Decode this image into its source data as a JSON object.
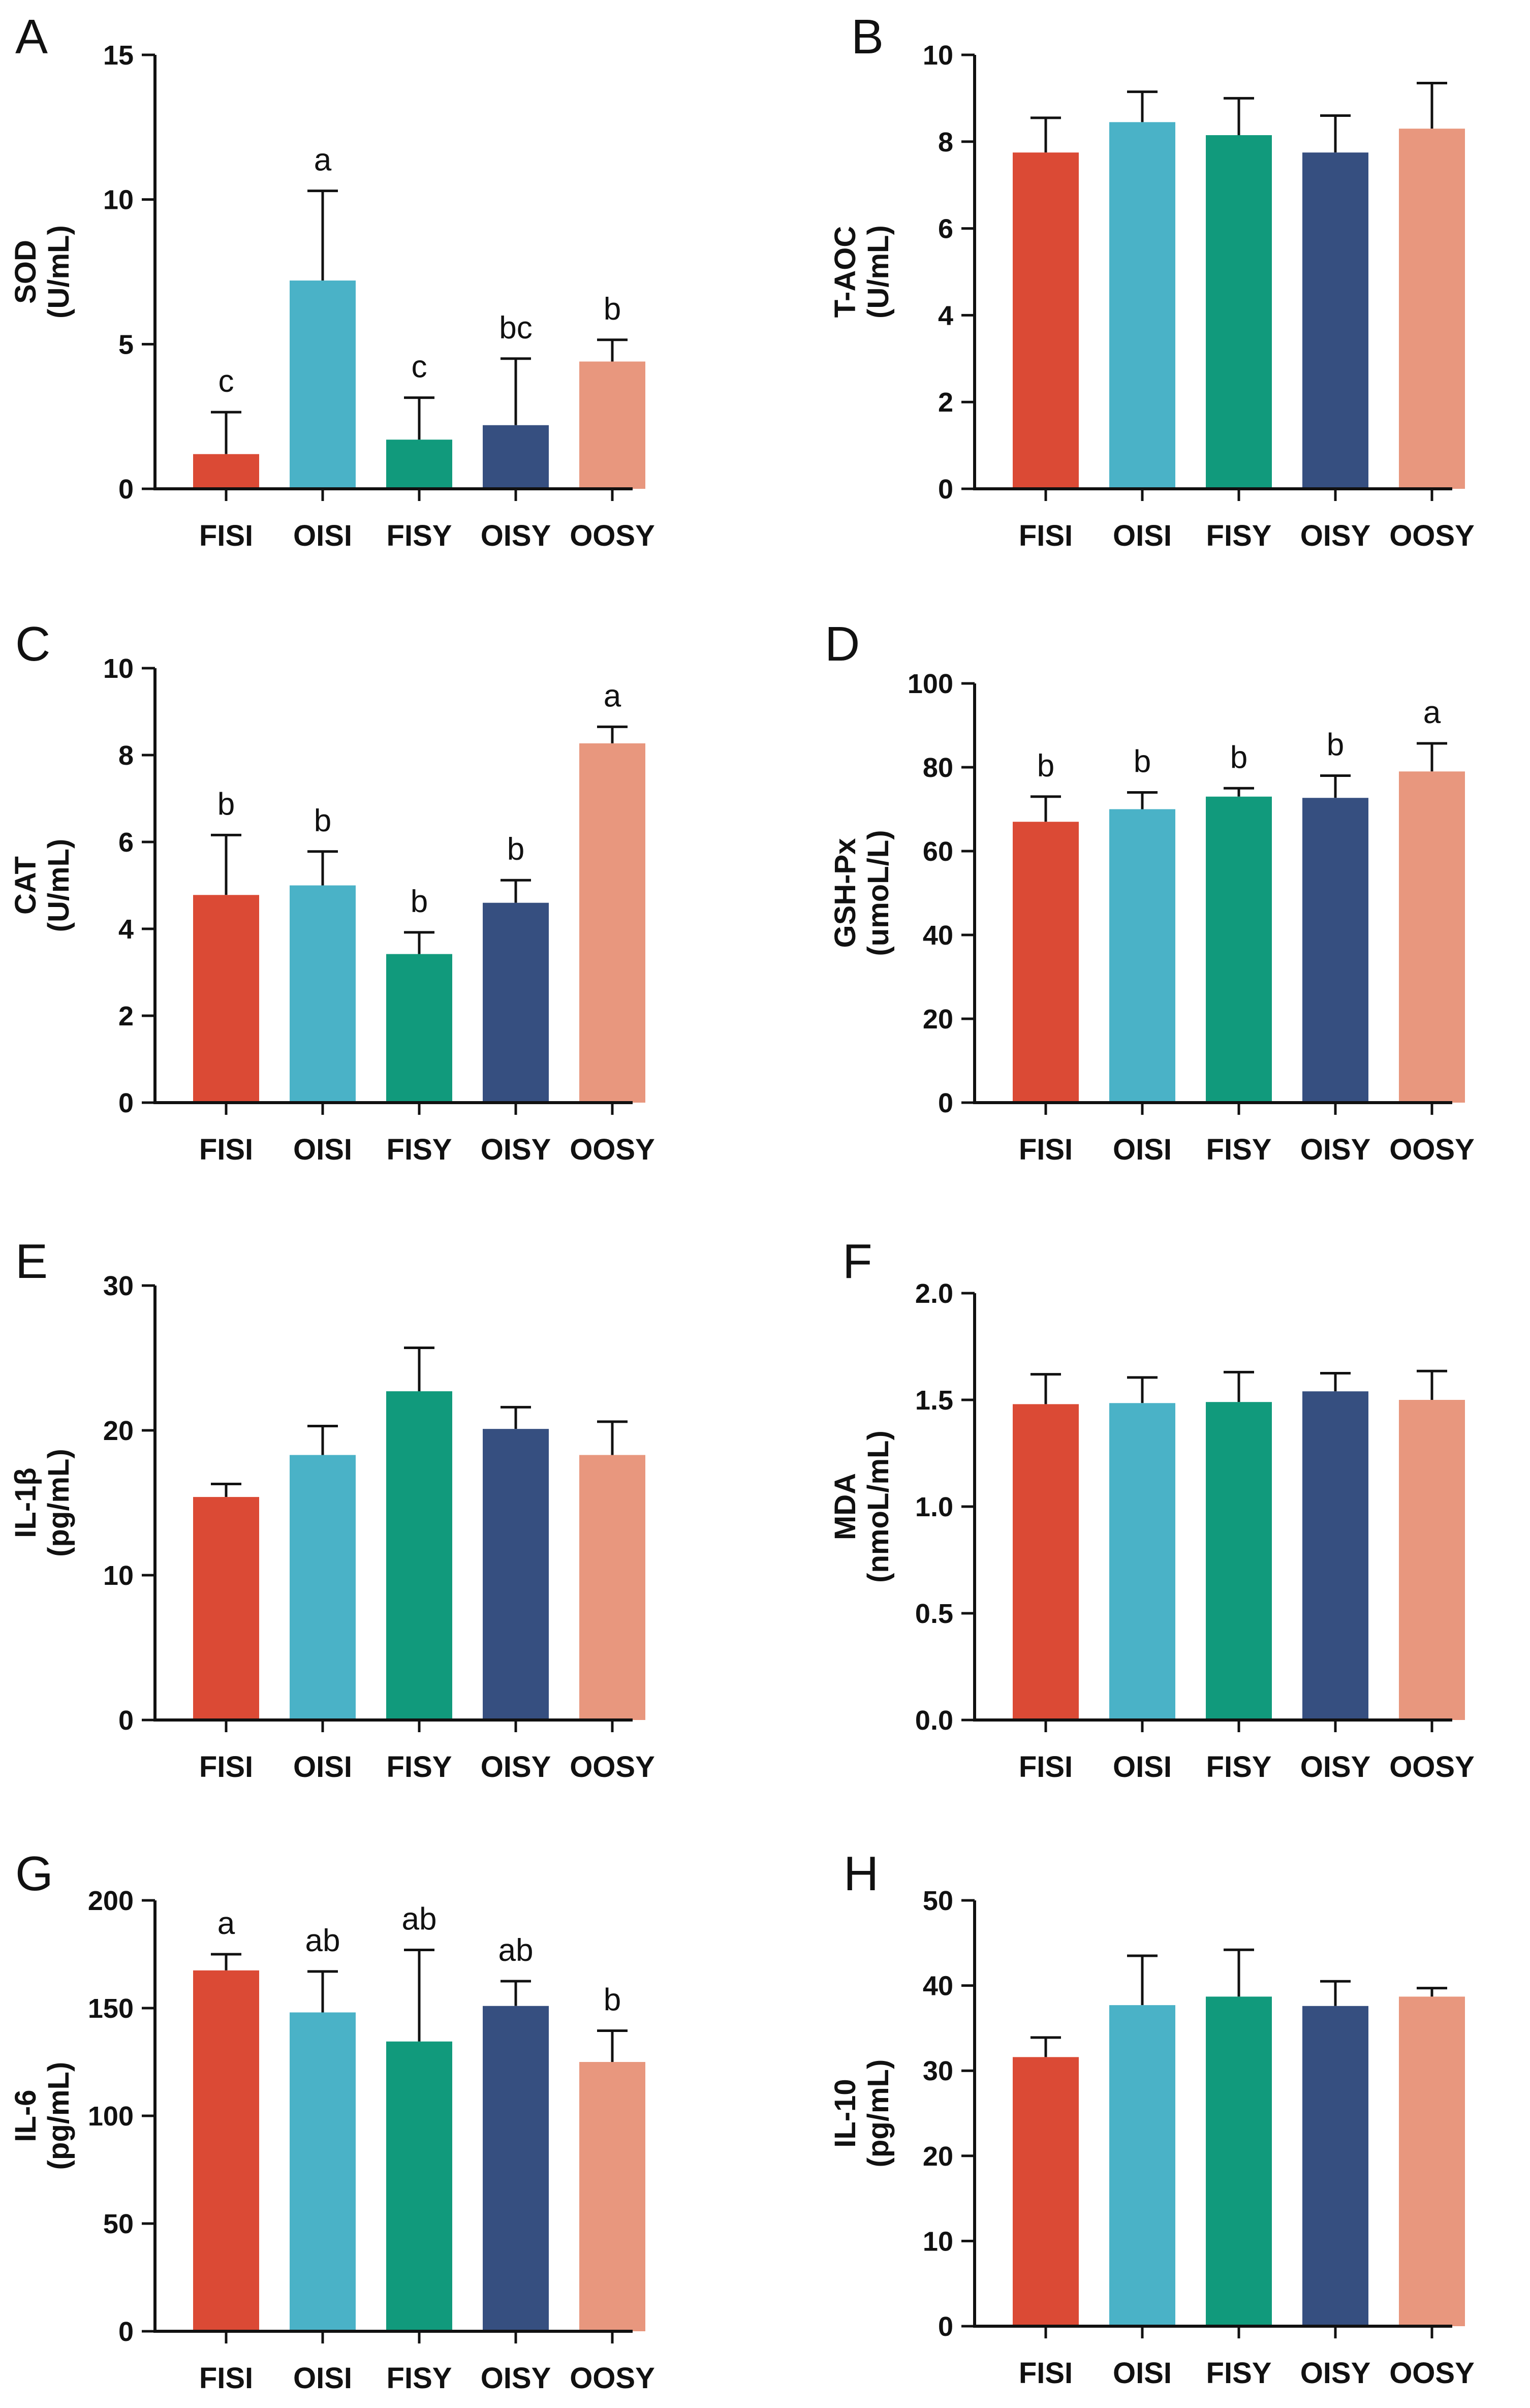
{
  "colors": [
    "#db4a35",
    "#4ab2c7",
    "#119a7c",
    "#364f80",
    "#e8977e"
  ],
  "chart_data": [
    {
      "panel": "A",
      "type": "bar",
      "categories": [
        "FISI",
        "OISI",
        "FISY",
        "OISY",
        "OOSY"
      ],
      "values": [
        1.2,
        7.2,
        1.7,
        2.2,
        4.4
      ],
      "errors": [
        1.45,
        3.1,
        1.45,
        2.3,
        0.75
      ],
      "labels": [
        "c",
        "a",
        "c",
        "bc",
        "b"
      ],
      "ylabel": [
        "SOD",
        "(U/mL)"
      ],
      "ylim": [
        0,
        15
      ],
      "yticks": [
        0,
        5,
        10,
        15
      ],
      "ytick_labels": [
        "0",
        "5",
        "10",
        "15"
      ]
    },
    {
      "panel": "B",
      "type": "bar",
      "categories": [
        "FISI",
        "OISI",
        "FISY",
        "OISY",
        "OOSY"
      ],
      "values": [
        7.75,
        8.45,
        8.15,
        7.75,
        8.3
      ],
      "errors": [
        0.8,
        0.7,
        0.85,
        0.85,
        1.05
      ],
      "labels": [
        "",
        "",
        "",
        "",
        ""
      ],
      "ylabel": [
        "T-AOC",
        "(U/mL)"
      ],
      "ylim": [
        0,
        10
      ],
      "yticks": [
        0,
        2,
        4,
        6,
        8,
        10
      ],
      "ytick_labels": [
        "0",
        "2",
        "4",
        "6",
        "8",
        "10"
      ]
    },
    {
      "panel": "C",
      "type": "bar",
      "categories": [
        "FISI",
        "OISI",
        "FISY",
        "OISY",
        "OOSY"
      ],
      "values": [
        4.78,
        5.0,
        3.42,
        4.6,
        8.27
      ],
      "errors": [
        1.38,
        0.78,
        0.5,
        0.52,
        0.38
      ],
      "labels": [
        "b",
        "b",
        "b",
        "b",
        "a"
      ],
      "ylabel": [
        "CAT",
        "(U/mL)"
      ],
      "ylim": [
        0,
        10
      ],
      "yticks": [
        0,
        2,
        4,
        6,
        8,
        10
      ],
      "ytick_labels": [
        "0",
        "2",
        "4",
        "6",
        "8",
        "10"
      ]
    },
    {
      "panel": "D",
      "type": "bar",
      "categories": [
        "FISI",
        "OISI",
        "FISY",
        "OISY",
        "OOSY"
      ],
      "values": [
        67,
        70,
        73,
        72.7,
        79
      ],
      "errors": [
        6,
        4,
        2,
        5.3,
        6.7
      ],
      "labels": [
        "b",
        "b",
        "b",
        "b",
        "a"
      ],
      "ylabel": [
        "GSH-Px",
        "(umoL/L)"
      ],
      "ylim": [
        0,
        100
      ],
      "yticks": [
        0,
        20,
        40,
        60,
        80,
        100
      ],
      "ytick_labels": [
        "0",
        "20",
        "40",
        "60",
        "80",
        "100"
      ]
    },
    {
      "panel": "E",
      "type": "bar",
      "categories": [
        "FISI",
        "OISI",
        "FISY",
        "OISY",
        "OOSY"
      ],
      "values": [
        15.4,
        18.3,
        22.7,
        20.1,
        18.3
      ],
      "errors": [
        0.9,
        2.0,
        3.0,
        1.5,
        2.3
      ],
      "labels": [
        "",
        "",
        "",
        "",
        ""
      ],
      "ylabel": [
        "IL-1β",
        "(pg/mL)"
      ],
      "ylim": [
        0,
        30
      ],
      "yticks": [
        0,
        10,
        20,
        30
      ],
      "ytick_labels": [
        "0",
        "10",
        "20",
        "30"
      ]
    },
    {
      "panel": "F",
      "type": "bar",
      "categories": [
        "FISI",
        "OISI",
        "FISY",
        "OISY",
        "OOSY"
      ],
      "values": [
        1.48,
        1.485,
        1.49,
        1.54,
        1.5
      ],
      "errors": [
        0.14,
        0.12,
        0.14,
        0.085,
        0.135
      ],
      "labels": [
        "",
        "",
        "",
        "",
        ""
      ],
      "ylabel": [
        "MDA",
        "(nmoL/mL)"
      ],
      "ylim": [
        0,
        2
      ],
      "yticks": [
        0,
        0.5,
        1,
        1.5,
        2
      ],
      "ytick_labels": [
        "0.0",
        "0.5",
        "1.0",
        "1.5",
        "2.0"
      ]
    },
    {
      "panel": "G",
      "type": "bar",
      "categories": [
        "FISI",
        "OISI",
        "FISY",
        "OISY",
        "OOSY"
      ],
      "values": [
        167.5,
        148,
        134.5,
        151,
        125
      ],
      "errors": [
        7.5,
        19,
        42.5,
        11.5,
        14.5
      ],
      "labels": [
        "a",
        "ab",
        "ab",
        "ab",
        "b"
      ],
      "ylabel": [
        "IL-6",
        "(pg/mL)"
      ],
      "ylim": [
        0,
        200
      ],
      "yticks": [
        0,
        50,
        100,
        150,
        200
      ],
      "ytick_labels": [
        "0",
        "50",
        "100",
        "150",
        "200"
      ]
    },
    {
      "panel": "H",
      "type": "bar",
      "categories": [
        "FISI",
        "OISI",
        "FISY",
        "OISY",
        "OOSY"
      ],
      "values": [
        31.6,
        37.7,
        38.7,
        37.6,
        38.7
      ],
      "errors": [
        2.3,
        5.8,
        5.5,
        2.9,
        1.0
      ],
      "labels": [
        "",
        "",
        "",
        "",
        ""
      ],
      "ylabel": [
        "IL-10",
        "(pg/mL)"
      ],
      "ylim": [
        0,
        50
      ],
      "yticks": [
        0,
        10,
        20,
        30,
        40,
        50
      ],
      "ytick_labels": [
        "0",
        "10",
        "20",
        "30",
        "40",
        "50"
      ]
    }
  ]
}
